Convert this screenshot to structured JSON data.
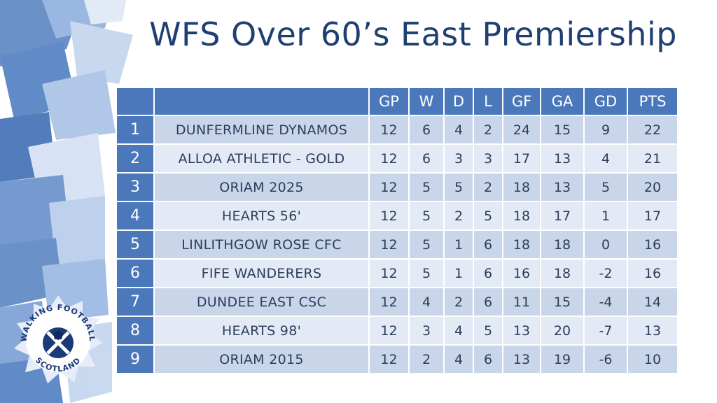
{
  "title": "WFS Over 60’s East Premiership",
  "columns": [
    "GP",
    "W",
    "D",
    "L",
    "GF",
    "GA",
    "GD",
    "PTS"
  ],
  "rows": [
    {
      "pos": "1",
      "team": "DUNFERMLINE DYNAMOS",
      "gp": "12",
      "w": "6",
      "d": "4",
      "l": "2",
      "gf": "24",
      "ga": "15",
      "gd": "9",
      "pts": "22"
    },
    {
      "pos": "2",
      "team": "ALLOA ATHLETIC - GOLD",
      "gp": "12",
      "w": "6",
      "d": "3",
      "l": "3",
      "gf": "17",
      "ga": "13",
      "gd": "4",
      "pts": "21"
    },
    {
      "pos": "3",
      "team": "ORIAM 2025",
      "gp": "12",
      "w": "5",
      "d": "5",
      "l": "2",
      "gf": "18",
      "ga": "13",
      "gd": "5",
      "pts": "20"
    },
    {
      "pos": "4",
      "team": "HEARTS 56'",
      "gp": "12",
      "w": "5",
      "d": "2",
      "l": "5",
      "gf": "18",
      "ga": "17",
      "gd": "1",
      "pts": "17"
    },
    {
      "pos": "5",
      "team": "LINLITHGOW ROSE CFC",
      "gp": "12",
      "w": "5",
      "d": "1",
      "l": "6",
      "gf": "18",
      "ga": "18",
      "gd": "0",
      "pts": "16"
    },
    {
      "pos": "6",
      "team": "FIFE WANDERERS",
      "gp": "12",
      "w": "5",
      "d": "1",
      "l": "6",
      "gf": "16",
      "ga": "18",
      "gd": "-2",
      "pts": "16"
    },
    {
      "pos": "7",
      "team": "DUNDEE EAST CSC",
      "gp": "12",
      "w": "4",
      "d": "2",
      "l": "6",
      "gf": "11",
      "ga": "15",
      "gd": "-4",
      "pts": "14"
    },
    {
      "pos": "8",
      "team": "HEARTS 98'",
      "gp": "12",
      "w": "3",
      "d": "4",
      "l": "5",
      "gf": "13",
      "ga": "20",
      "gd": "-7",
      "pts": "13"
    },
    {
      "pos": "9",
      "team": "ORIAM 2015",
      "gp": "12",
      "w": "2",
      "d": "4",
      "l": "6",
      "gf": "13",
      "ga": "19",
      "gd": "-6",
      "pts": "10"
    }
  ],
  "logo": {
    "top_text": "WALKING FOOTBALL",
    "bottom_text": "SCOTLAND",
    "icon": "saltire-football-icon"
  },
  "colors": {
    "title": "#1f3f73",
    "header": "#4a78bb",
    "row_odd": "#c9d6ea",
    "row_even": "#e3eaf5",
    "logo_navy": "#1b3a78"
  }
}
